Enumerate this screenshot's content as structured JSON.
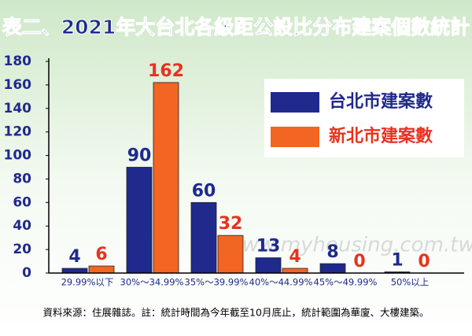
{
  "chart_data": {
    "type": "bar",
    "title": "表二、2021年大台北各級距公設比分布建案個數統計",
    "categories": [
      "29.99%以下",
      "30%～34.99%",
      "35%～39.99%",
      "40%～44.99%",
      "45%～49.99%",
      "50%以上"
    ],
    "series": [
      {
        "name": "台北市建案數",
        "color": "#1f2a8c",
        "label_color": "#1f2a8c",
        "values": [
          4,
          90,
          60,
          13,
          8,
          1
        ]
      },
      {
        "name": "新北市建案數",
        "color": "#f26522",
        "label_color": "#e8321e",
        "values": [
          6,
          162,
          32,
          4,
          0,
          0
        ]
      }
    ],
    "ylim": [
      0,
      180
    ],
    "yticks": [
      0,
      20,
      40,
      60,
      80,
      100,
      120,
      140,
      160,
      180
    ],
    "grid": false,
    "legend": "upper right",
    "watermark": "www.myhousing.com.tw",
    "footnote": "資料來源：住展雜誌。註：統計時間為今年截至10月底止，統計範圍為華廈、大樓建築。"
  }
}
